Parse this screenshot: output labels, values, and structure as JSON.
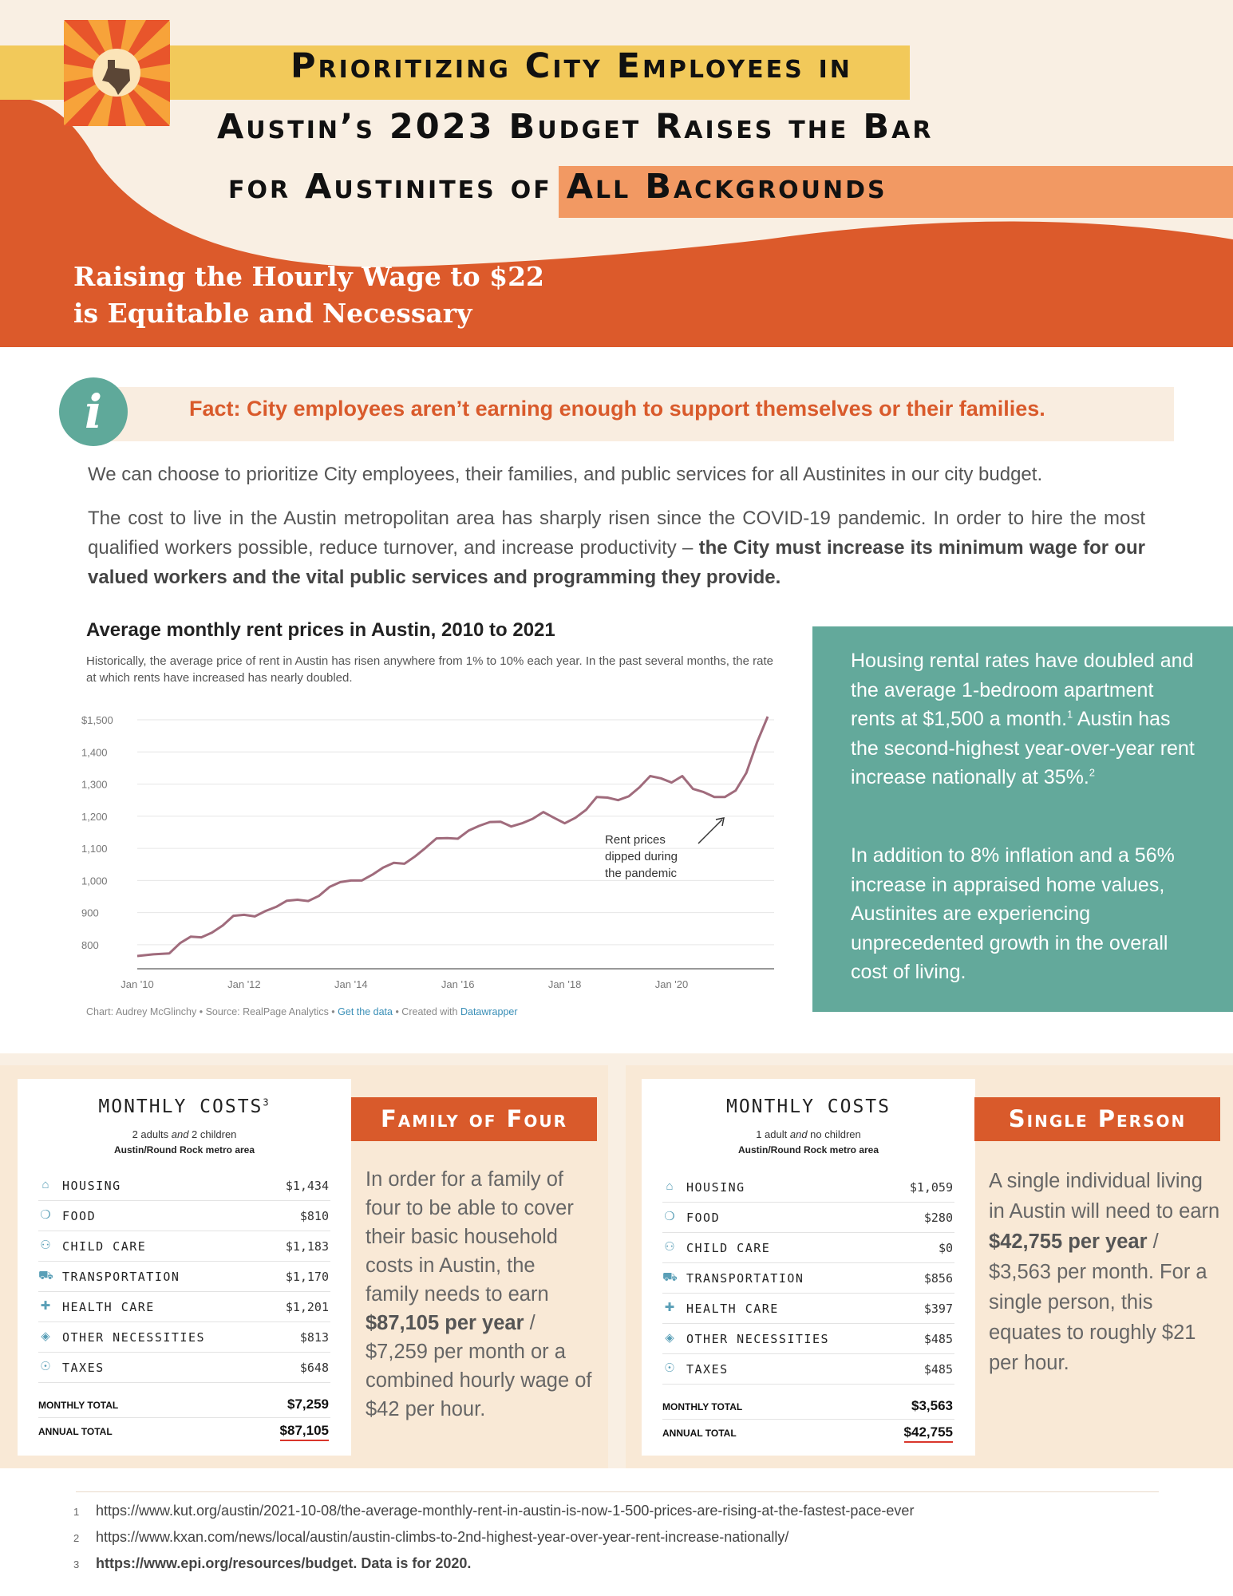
{
  "header": {
    "title_lines": [
      "Prioritizing City Employees in",
      "Austin’s 2023 Budget Raises the Bar",
      "for Austinites of All Backgrounds"
    ],
    "subheading_lines": [
      "Raising the Hourly Wage to $22",
      "is Equitable and Necessary"
    ],
    "colors": {
      "orange": "#dc5a2b",
      "yellow": "#f2c95a",
      "peach": "#f29963",
      "cream": "#f9efe3",
      "teal": "#63a99b"
    }
  },
  "fact": {
    "icon": "info-icon",
    "text": "Fact: City employees aren’t earning enough to support themselves or their families."
  },
  "body": {
    "para1": "We can choose to prioritize City employees, their families, and public services for all Austinites in our city budget.",
    "para2_plain": "The cost to live in the Austin metropolitan area has sharply risen since the COVID-19 pandemic. In order to hire the most qualified workers possible, reduce turnover, and increase productivity – ",
    "para2_bold": "the City must increase its minimum wage for our valued workers and the vital public services and programming they provide."
  },
  "chart_data": {
    "type": "line",
    "title": "Average monthly rent prices in Austin, 2010 to 2021",
    "subtitle": "Historically, the average price of rent in Austin has risen anywhere from 1% to 10% each year. In the past several months, the rate at which rents have increased has nearly doubled.",
    "xlabel": "",
    "ylabel": "",
    "ylim": [
      750,
      1520
    ],
    "xlim": [
      2010.0,
      2021.8
    ],
    "y_ticks": [
      800,
      900,
      1000,
      1100,
      1200,
      1300,
      1400,
      1500
    ],
    "y_tick_labels": [
      "800",
      "900",
      "1,000",
      "1,100",
      "1,200",
      "1,300",
      "1,400",
      "$1,500"
    ],
    "x_ticks": [
      2010,
      2012,
      2014,
      2016,
      2018,
      2020
    ],
    "x_tick_labels": [
      "Jan '10",
      "Jan '12",
      "Jan '14",
      "Jan '16",
      "Jan '18",
      "Jan '20"
    ],
    "series": [
      {
        "name": "Average monthly rent",
        "color": "#a06b7c",
        "x": [
          2010.0,
          2010.3,
          2010.6,
          2010.8,
          2011.0,
          2011.2,
          2011.4,
          2011.6,
          2011.8,
          2012.0,
          2012.2,
          2012.4,
          2012.6,
          2012.8,
          2013.0,
          2013.2,
          2013.4,
          2013.6,
          2013.8,
          2014.0,
          2014.2,
          2014.4,
          2014.6,
          2014.8,
          2015.0,
          2015.2,
          2015.4,
          2015.6,
          2015.8,
          2016.0,
          2016.2,
          2016.4,
          2016.6,
          2016.8,
          2017.0,
          2017.2,
          2017.4,
          2017.6,
          2017.8,
          2018.0,
          2018.2,
          2018.4,
          2018.6,
          2018.8,
          2019.0,
          2019.2,
          2019.4,
          2019.6,
          2019.8,
          2020.0,
          2020.2,
          2020.4,
          2020.6,
          2020.8,
          2021.0,
          2021.2,
          2021.4,
          2021.6,
          2021.8
        ],
        "values": [
          765,
          770,
          773,
          805,
          825,
          823,
          838,
          860,
          890,
          893,
          888,
          905,
          918,
          937,
          940,
          936,
          952,
          980,
          995,
          1000,
          1000,
          1018,
          1040,
          1055,
          1052,
          1075,
          1102,
          1131,
          1132,
          1130,
          1155,
          1170,
          1182,
          1183,
          1168,
          1178,
          1192,
          1213,
          1195,
          1178,
          1195,
          1220,
          1260,
          1258,
          1250,
          1262,
          1290,
          1325,
          1318,
          1305,
          1325,
          1285,
          1275,
          1260,
          1260,
          1280,
          1335,
          1430,
          1510
        ]
      }
    ],
    "annotation": "Rent prices dipped during the pandemic",
    "credit_prefix": "Chart: Audrey McGlinchy • Source: RealPage Analytics •",
    "credit_link1": "Get the data",
    "credit_mid": "• Created with",
    "credit_link2": "Datawrapper"
  },
  "sidebar": {
    "p1_a": "Housing rental rates have doubled and the average 1-bedroom apartment rents at $1,500 a month.",
    "p1_sup1": "1",
    "p1_b": " Austin has the second-highest year-over-year rent increase nationally at 35%.",
    "p1_sup2": "2",
    "p2": "In addition to 8% inflation and a 56% increase in appraised home values, Austinites are experiencing unprecedented growth in the overall cost of living."
  },
  "family": {
    "card_title": "MONTHLY COSTS",
    "card_sup": "3",
    "sub1_a": "2 adults ",
    "sub1_and": "and",
    "sub1_b": " 2 children",
    "sub2": "Austin/Round Rock metro area",
    "rows": [
      {
        "icon": "house-icon",
        "label": "HOUSING",
        "value": "$1,434"
      },
      {
        "icon": "apple-icon",
        "label": "FOOD",
        "value": "$810"
      },
      {
        "icon": "people-icon",
        "label": "CHILD CARE",
        "value": "$1,183"
      },
      {
        "icon": "car-icon",
        "label": "TRANSPORTATION",
        "value": "$1,170"
      },
      {
        "icon": "medical-cross-icon",
        "label": "HEALTH CARE",
        "value": "$1,201"
      },
      {
        "icon": "tag-icon",
        "label": "OTHER NECESSITIES",
        "value": "$813"
      },
      {
        "icon": "hand-coin-icon",
        "label": "TAXES",
        "value": "$648"
      }
    ],
    "monthly_label": "MONTHLY TOTAL",
    "monthly_value": "$7,259",
    "annual_label": "ANNUAL TOTAL",
    "annual_value": "$87,105",
    "tag": "Family of Four",
    "text_a": "In order for a family of four to be able to cover their basic household costs in Austin, the family needs to earn ",
    "text_bold": "$87,105 per year",
    "text_b": " / $7,259 per month or a combined hourly wage of $42 per hour."
  },
  "single": {
    "card_title": "MONTHLY COSTS",
    "sub1_a": "1 adult ",
    "sub1_and": "and",
    "sub1_b": " no children",
    "sub2": "Austin/Round Rock metro area",
    "rows": [
      {
        "icon": "house-icon",
        "label": "HOUSING",
        "value": "$1,059"
      },
      {
        "icon": "apple-icon",
        "label": "FOOD",
        "value": "$280"
      },
      {
        "icon": "people-icon",
        "label": "CHILD CARE",
        "value": "$0"
      },
      {
        "icon": "car-icon",
        "label": "TRANSPORTATION",
        "value": "$856"
      },
      {
        "icon": "medical-cross-icon",
        "label": "HEALTH CARE",
        "value": "$397"
      },
      {
        "icon": "tag-icon",
        "label": "OTHER NECESSITIES",
        "value": "$485"
      },
      {
        "icon": "hand-coin-icon",
        "label": "TAXES",
        "value": "$485"
      }
    ],
    "monthly_label": "MONTHLY TOTAL",
    "monthly_value": "$3,563",
    "annual_label": "ANNUAL TOTAL",
    "annual_value": "$42,755",
    "tag": "Single Person",
    "text_a": "A single individual living in Austin will need to earn ",
    "text_bold": "$42,755 per year",
    "text_b": " / $3,563 per month. For a single person, this equates to roughly $21 per hour."
  },
  "footnotes": [
    {
      "num": "1",
      "text": "https://www.kut.org/austin/2021-10-08/the-average-monthly-rent-in-austin-is-now-1-500-prices-are-rising-at-the-fastest-pace-ever"
    },
    {
      "num": "2",
      "text": "https://www.kxan.com/news/local/austin/austin-climbs-to-2nd-highest-year-over-year-rent-increase-nationally/"
    },
    {
      "num": "3",
      "text": "https://www.epi.org/resources/budget. Data is for 2020."
    }
  ]
}
